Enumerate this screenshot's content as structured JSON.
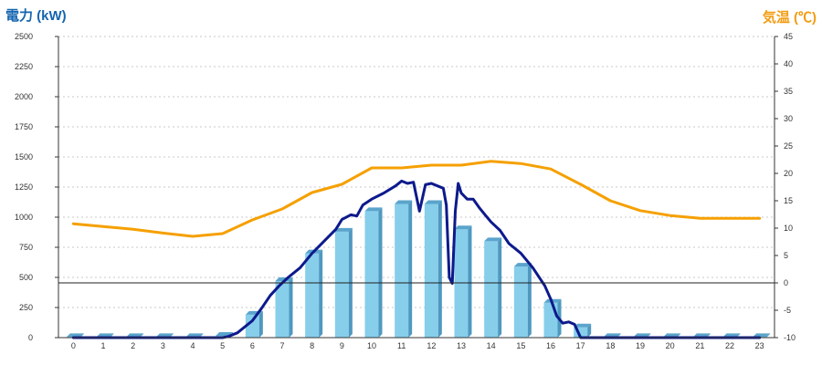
{
  "chart_data": {
    "type": "bar",
    "categories": [
      "0",
      "1",
      "2",
      "3",
      "4",
      "5",
      "6",
      "7",
      "8",
      "9",
      "10",
      "11",
      "12",
      "13",
      "14",
      "15",
      "16",
      "17",
      "18",
      "19",
      "20",
      "21",
      "22",
      "23"
    ],
    "left_axis": {
      "label": "電力 (kW)",
      "ylim": [
        0,
        2500
      ],
      "ticks": [
        "0",
        "250",
        "500",
        "750",
        "1000",
        "1250",
        "1500",
        "1750",
        "2000",
        "2250",
        "2500"
      ],
      "color": "#1565b0"
    },
    "right_axis": {
      "label": "気温 (℃)",
      "ylim": [
        -10,
        45
      ],
      "ticks": [
        "-10",
        "-5",
        "0",
        "5",
        "10",
        "15",
        "20",
        "25",
        "30",
        "35",
        "40",
        "45"
      ],
      "color": "#f39c12"
    },
    "grid": true,
    "zero_line_temp": 0,
    "series": [
      {
        "type": "bar",
        "axis": "left",
        "color": "#87ceeb",
        "values": [
          5,
          5,
          5,
          5,
          5,
          15,
          190,
          470,
          700,
          880,
          1050,
          1110,
          1110,
          900,
          800,
          590,
          290,
          85,
          5,
          5,
          5,
          5,
          5,
          5
        ]
      },
      {
        "type": "line",
        "axis": "left",
        "color": "#0d1a8c",
        "x": [
          0,
          1,
          2,
          3,
          4,
          5,
          5.2,
          5.5,
          6,
          6.3,
          6.6,
          6.9,
          7.2,
          7.6,
          8,
          8.4,
          8.8,
          9,
          9.3,
          9.5,
          9.7,
          10,
          10.4,
          10.8,
          11,
          11.2,
          11.4,
          11.6,
          11.8,
          12,
          12.2,
          12.4,
          12.5,
          12.6,
          12.7,
          12.8,
          12.9,
          13,
          13.2,
          13.4,
          13.6,
          13.8,
          14,
          14.3,
          14.6,
          15,
          15.4,
          15.8,
          16,
          16.2,
          16.4,
          16.6,
          16.8,
          17,
          17.2,
          17.4,
          18,
          19,
          20,
          21,
          22,
          23
        ],
        "y": [
          0,
          0,
          0,
          0,
          0,
          0,
          10,
          40,
          140,
          240,
          350,
          430,
          500,
          580,
          700,
          800,
          900,
          980,
          1020,
          1010,
          1100,
          1150,
          1200,
          1260,
          1300,
          1280,
          1290,
          1050,
          1270,
          1280,
          1260,
          1240,
          1100,
          500,
          450,
          1050,
          1280,
          1200,
          1150,
          1150,
          1080,
          1020,
          960,
          890,
          780,
          700,
          580,
          430,
          320,
          180,
          120,
          130,
          110,
          0,
          0,
          0,
          0,
          0,
          0,
          0,
          0,
          0
        ]
      },
      {
        "type": "line",
        "axis": "right",
        "color": "#f5a000",
        "values": [
          10.8,
          10.3,
          9.8,
          9.1,
          8.5,
          9,
          11.5,
          13.5,
          16.5,
          18,
          21,
          21,
          21.5,
          21.5,
          22.2,
          21.8,
          20.8,
          18,
          15,
          13.2,
          12.3,
          11.8,
          11.8,
          11.8
        ]
      }
    ]
  }
}
